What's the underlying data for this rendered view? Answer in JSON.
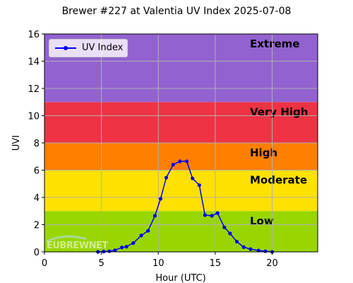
{
  "chart_data": {
    "type": "line",
    "title": "Brewer #227 at Valentia UV Index 2025-07-08",
    "xlabel": "Hour (UTC)",
    "ylabel": "UVI",
    "xlim": [
      0,
      24
    ],
    "ylim": [
      0,
      16
    ],
    "x_ticks": [
      "0",
      "5",
      "10",
      "15",
      "20"
    ],
    "y_ticks": [
      "0",
      "2",
      "4",
      "6",
      "8",
      "10",
      "12",
      "14",
      "16"
    ],
    "grid": true,
    "legend_position": "top-left",
    "bands": [
      {
        "label": "Low",
        "from": 0,
        "to": 3,
        "color": "#99d600"
      },
      {
        "label": "Moderate",
        "from": 3,
        "to": 6,
        "color": "#ffe100"
      },
      {
        "label": "High",
        "from": 6,
        "to": 8,
        "color": "#ff7f00"
      },
      {
        "label": "Very High",
        "from": 8,
        "to": 11,
        "color": "#ee3344"
      },
      {
        "label": "Extreme",
        "from": 11,
        "to": 16,
        "color": "#9262d0"
      }
    ],
    "series": [
      {
        "name": "UV Index",
        "color": "#0000ee",
        "x": [
          4.7,
          5.2,
          5.7,
          6.2,
          6.8,
          7.2,
          7.8,
          8.5,
          9.1,
          9.7,
          10.2,
          10.7,
          11.3,
          11.9,
          12.5,
          13.0,
          13.6,
          14.1,
          14.7,
          15.2,
          15.8,
          16.3,
          16.9,
          17.5,
          18.1,
          18.8,
          19.4,
          20.0
        ],
        "y": [
          0.0,
          0.02,
          0.05,
          0.12,
          0.32,
          0.38,
          0.65,
          1.2,
          1.55,
          2.65,
          3.9,
          5.45,
          6.4,
          6.65,
          6.65,
          5.4,
          4.9,
          2.7,
          2.65,
          2.85,
          1.8,
          1.35,
          0.75,
          0.35,
          0.2,
          0.1,
          0.05,
          0.0
        ]
      }
    ],
    "watermark": "EUBREWNET"
  }
}
